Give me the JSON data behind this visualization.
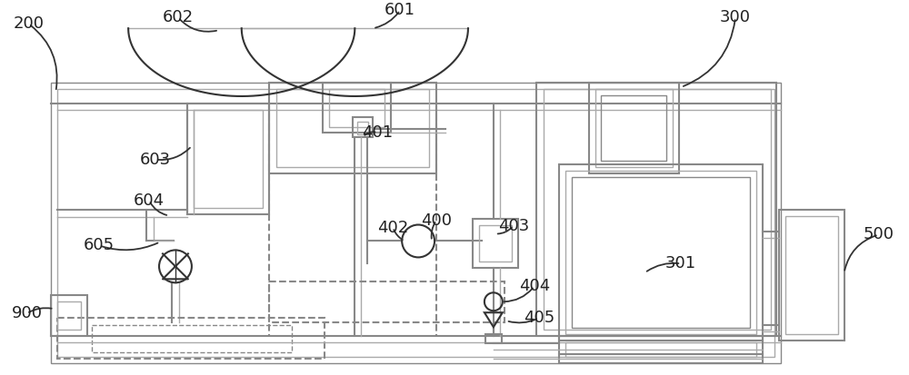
{
  "bg_color": "#ffffff",
  "lc": "#888888",
  "dc": "#333333",
  "lc2": "#aaaaaa",
  "label_color": "#222222",
  "figsize": [
    10.0,
    4.13
  ],
  "dpi": 100
}
